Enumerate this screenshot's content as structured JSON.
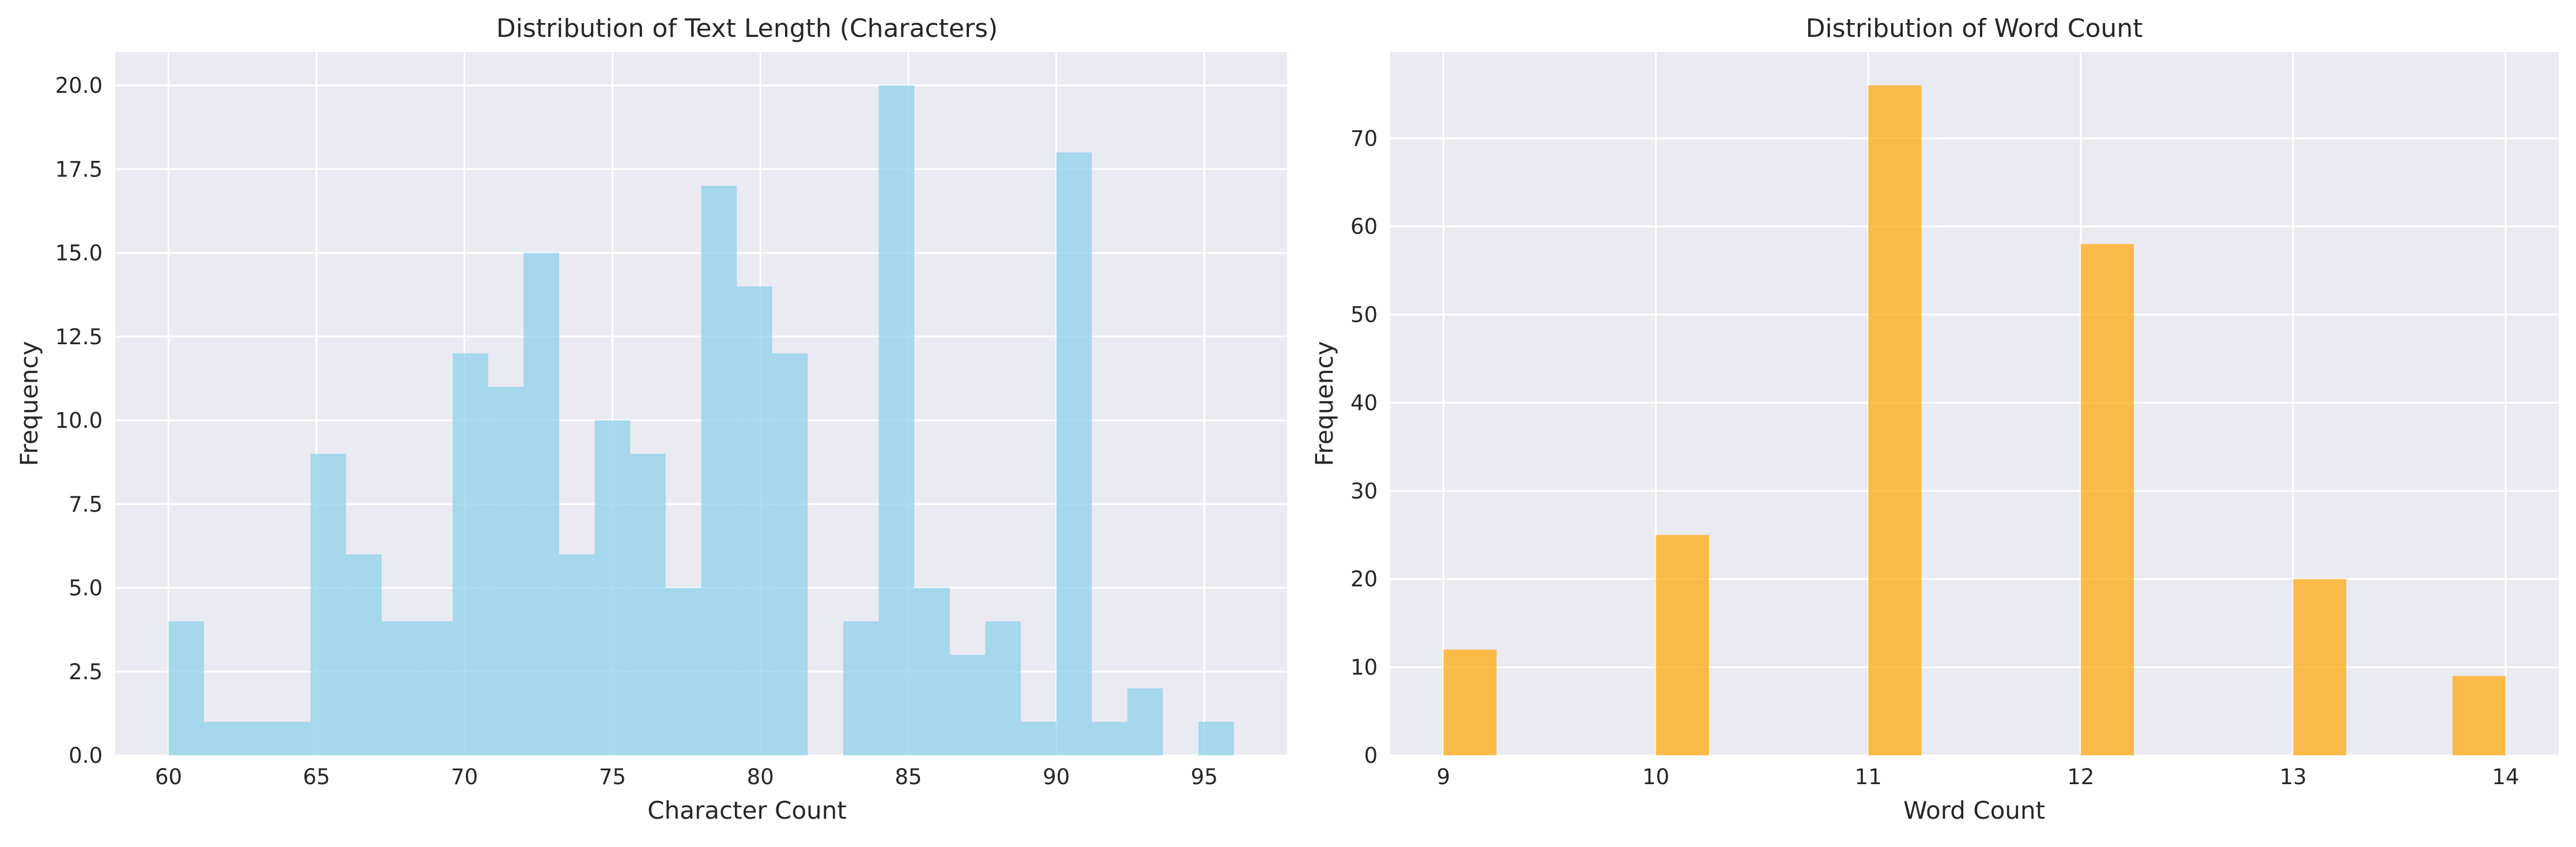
{
  "chart_data": [
    {
      "type": "bar",
      "title": "Distribution of Text Length (Characters)",
      "xlabel": "Character Count",
      "ylabel": "Frequency",
      "color": "#87ceeb",
      "bar_opacity": 0.7,
      "grid": true,
      "xlim": [
        58.2,
        97.8
      ],
      "ylim": [
        0,
        21
      ],
      "x_ticks": [
        60,
        65,
        70,
        75,
        80,
        85,
        90,
        95
      ],
      "y_ticks": [
        0.0,
        2.5,
        5.0,
        7.5,
        10.0,
        12.5,
        15.0,
        17.5,
        20.0
      ],
      "bin_edges": [
        60.0,
        61.2,
        62.4,
        63.6,
        64.8,
        66.0,
        67.2,
        68.4,
        69.6,
        70.8,
        72.0,
        73.2,
        74.4,
        75.6,
        76.8,
        78.0,
        79.2,
        80.4,
        81.6,
        82.8,
        84.0,
        85.2,
        86.4,
        87.6,
        88.8,
        90.0,
        91.2,
        92.4,
        93.6,
        94.8,
        96.0
      ],
      "values": [
        4,
        1,
        1,
        1,
        9,
        6,
        4,
        4,
        12,
        11,
        15,
        6,
        10,
        9,
        5,
        17,
        14,
        12,
        0,
        4,
        20,
        5,
        3,
        4,
        1,
        18,
        1,
        2,
        0,
        1
      ]
    },
    {
      "type": "bar",
      "title": "Distribution of Word Count",
      "xlabel": "Word Count",
      "ylabel": "Frequency",
      "color": "#ffa500",
      "bar_opacity": 0.7,
      "grid": true,
      "xlim": [
        8.75,
        14.25
      ],
      "ylim": [
        0,
        79.8
      ],
      "x_ticks": [
        9,
        10,
        11,
        12,
        13,
        14
      ],
      "y_ticks": [
        0,
        10,
        20,
        30,
        40,
        50,
        60,
        70
      ],
      "bin_edges": [
        9.0,
        9.25,
        9.5,
        9.75,
        10.0,
        10.25,
        10.5,
        10.75,
        11.0,
        11.25,
        11.5,
        11.75,
        12.0,
        12.25,
        12.5,
        12.75,
        13.0,
        13.25,
        13.5,
        13.75,
        14.0
      ],
      "values": [
        12,
        0,
        0,
        0,
        25,
        0,
        0,
        0,
        76,
        0,
        0,
        0,
        58,
        0,
        0,
        0,
        20,
        0,
        0,
        9
      ]
    }
  ]
}
